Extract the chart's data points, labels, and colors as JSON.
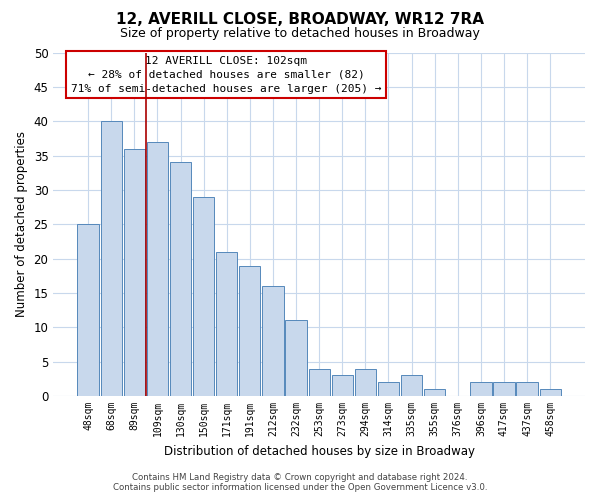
{
  "title": "12, AVERILL CLOSE, BROADWAY, WR12 7RA",
  "subtitle": "Size of property relative to detached houses in Broadway",
  "xlabel": "Distribution of detached houses by size in Broadway",
  "ylabel": "Number of detached properties",
  "bar_labels": [
    "48sqm",
    "68sqm",
    "89sqm",
    "109sqm",
    "130sqm",
    "150sqm",
    "171sqm",
    "191sqm",
    "212sqm",
    "232sqm",
    "253sqm",
    "273sqm",
    "294sqm",
    "314sqm",
    "335sqm",
    "355sqm",
    "376sqm",
    "396sqm",
    "417sqm",
    "437sqm",
    "458sqm"
  ],
  "bar_values": [
    25,
    40,
    36,
    37,
    34,
    29,
    21,
    19,
    16,
    11,
    4,
    3,
    4,
    2,
    3,
    1,
    0,
    2,
    2,
    2,
    1
  ],
  "bar_color": "#c8d8ec",
  "bar_edge_color": "#5588bb",
  "marker_line_color": "#aa0000",
  "ylim": [
    0,
    50
  ],
  "yticks": [
    0,
    5,
    10,
    15,
    20,
    25,
    30,
    35,
    40,
    45,
    50
  ],
  "annotation_title": "12 AVERILL CLOSE: 102sqm",
  "annotation_line1": "← 28% of detached houses are smaller (82)",
  "annotation_line2": "71% of semi-detached houses are larger (205) →",
  "annotation_box_color": "#ffffff",
  "annotation_box_edge_color": "#cc0000",
  "footer_line1": "Contains HM Land Registry data © Crown copyright and database right 2024.",
  "footer_line2": "Contains public sector information licensed under the Open Government Licence v3.0.",
  "background_color": "#ffffff",
  "grid_color": "#c8d8ec"
}
